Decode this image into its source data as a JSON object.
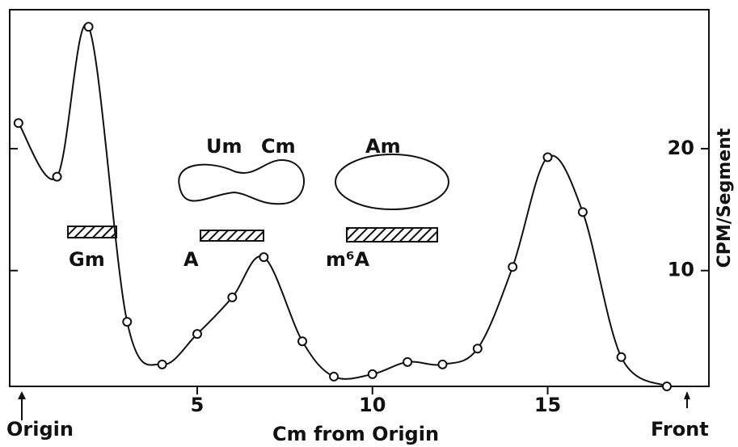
{
  "chart_data": {
    "type": "line",
    "x_label": "Cm from Origin",
    "y_label": "CPM/Segment",
    "x": [
      -0.1,
      1.0,
      1.9,
      3.0,
      4.0,
      5.0,
      6.0,
      6.9,
      8.0,
      8.9,
      10.0,
      11.0,
      12.0,
      13.0,
      14.0,
      15.0,
      16.0,
      17.1,
      18.4
    ],
    "values": [
      22.1,
      17.7,
      30.0,
      5.8,
      2.3,
      4.8,
      7.8,
      11.1,
      4.2,
      1.3,
      1.5,
      2.5,
      2.3,
      3.6,
      10.3,
      19.3,
      14.8,
      2.9,
      0.5
    ],
    "color": "#111111",
    "xlim": [
      -0.35,
      19.6
    ],
    "ylim": [
      0.5,
      31.4
    ],
    "xticks": [
      5,
      10,
      15
    ],
    "yticks": [
      10,
      20
    ],
    "annotations": [
      "Um",
      "Cm",
      "Am",
      "Gm",
      "A",
      "m⁶A",
      "Origin",
      "Front"
    ]
  }
}
